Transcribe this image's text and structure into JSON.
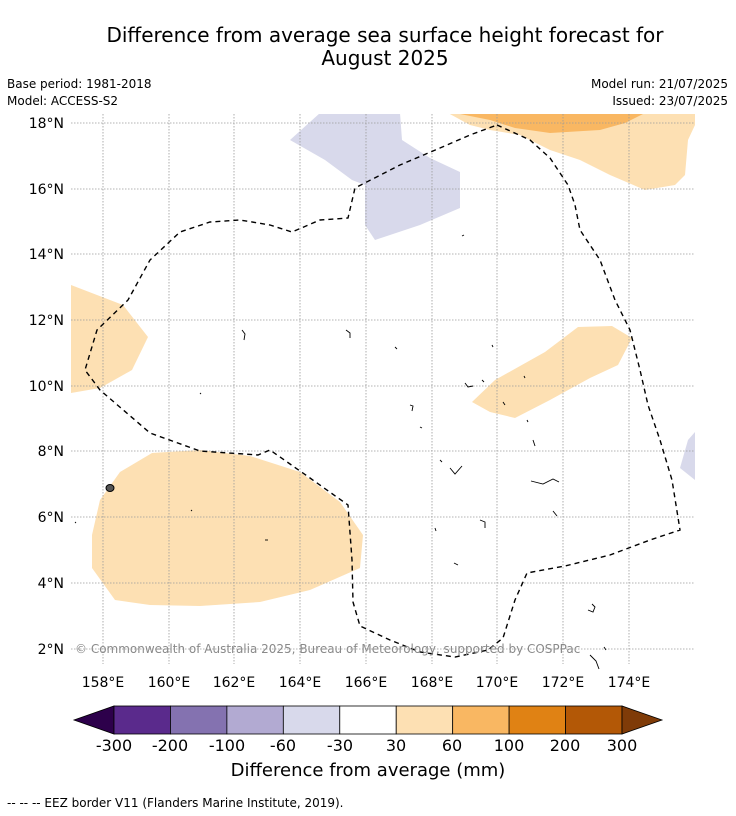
{
  "header": {
    "title_line1": "Difference from average sea surface height forecast for",
    "title_line2": "August 2025",
    "base_period": "Base period: 1981-2018",
    "model": "Model: ACCESS-S2",
    "model_run": "Model run: 21/07/2025",
    "issued": "Issued: 23/07/2025"
  },
  "map": {
    "lat_labels": [
      "18°N",
      "16°N",
      "14°N",
      "12°N",
      "10°N",
      "8°N",
      "6°N",
      "4°N",
      "2°N"
    ],
    "lon_labels": [
      "158°E",
      "160°E",
      "162°E",
      "164°E",
      "166°E",
      "168°E",
      "170°E",
      "172°E",
      "174°E"
    ],
    "copyright": "© Commonwealth of Australia 2025, Bureau of Meteorology, supported by COSPPac"
  },
  "colorbar": {
    "tick_labels": [
      "-300",
      "-200",
      "-100",
      "-60",
      "-30",
      "30",
      "60",
      "100",
      "200",
      "300"
    ],
    "colors": [
      "#2d004b",
      "#5a2a8c",
      "#8472b0",
      "#b2aad2",
      "#d8d9eb",
      "#ffffff",
      "#fde0b3",
      "#f9b762",
      "#e08214",
      "#b35806",
      "#7f3b08"
    ],
    "title": "Difference from average (mm)"
  },
  "footer": {
    "eez_note": "--  --  -- EEZ border V11 (Flanders Marine Institute, 2019)."
  }
}
